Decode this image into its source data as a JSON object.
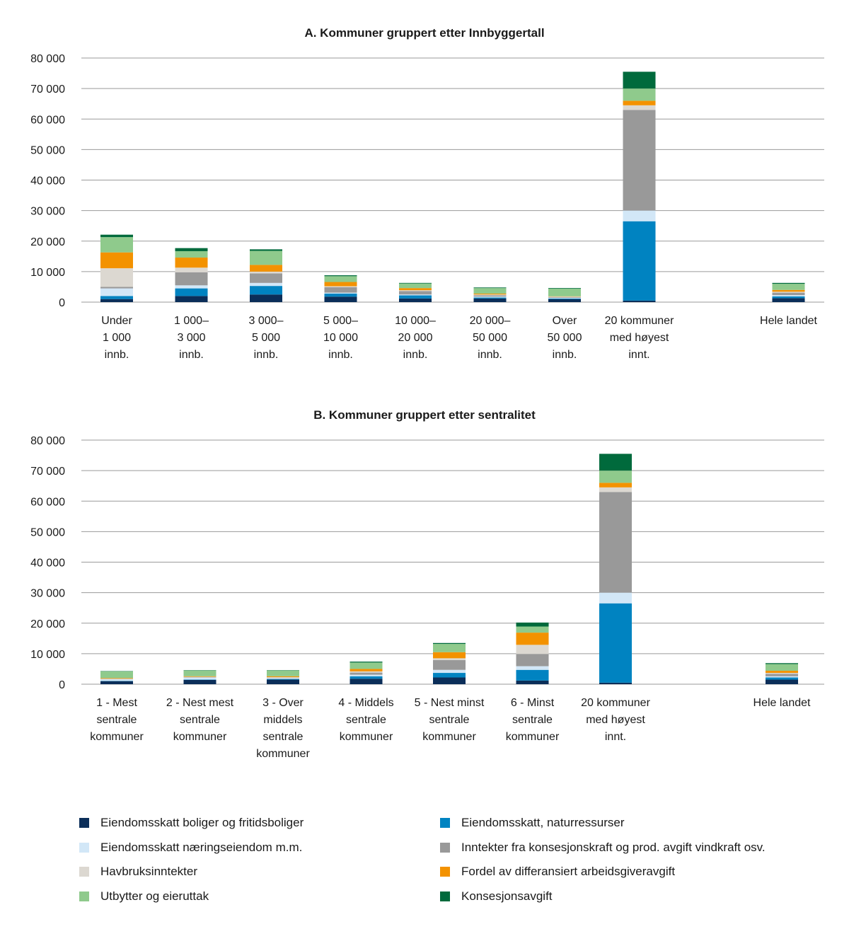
{
  "series": [
    {
      "name": "Eiendomsskatt boliger og fritidsboliger",
      "color": "#0b2e59"
    },
    {
      "name": "Eiendomsskatt, naturressurser",
      "color": "#0083c1"
    },
    {
      "name": "Eiendomsskatt næringseiendom m.m.",
      "color": "#d2e7f7"
    },
    {
      "name": "Inntekter fra konsesjonskraft og prod. avgift vindkraft osv.",
      "color": "#999999"
    },
    {
      "name": "Havbruksinntekter",
      "color": "#dcd8d1"
    },
    {
      "name": "Fordel av differansiert arbeidsgiveravgift",
      "color": "#f39200"
    },
    {
      "name": "Utbytter og eieruttak",
      "color": "#8fca8c"
    },
    {
      "name": "Konsesjonsavgift",
      "color": "#006a3c"
    }
  ],
  "legend_layout": [
    {
      "series": 0,
      "col": 0,
      "row": 0
    },
    {
      "series": 1,
      "col": 1,
      "row": 0
    },
    {
      "series": 2,
      "col": 0,
      "row": 1
    },
    {
      "series": 3,
      "col": 1,
      "row": 1
    },
    {
      "series": 4,
      "col": 0,
      "row": 2
    },
    {
      "series": 5,
      "col": 1,
      "row": 2
    },
    {
      "series": 6,
      "col": 0,
      "row": 3
    },
    {
      "series": 7,
      "col": 1,
      "row": 3
    }
  ],
  "chart_data": [
    {
      "type": "bar",
      "stacked": true,
      "title": "A. Kommuner gruppert etter Innbyggertall",
      "xlabel": "",
      "ylabel": "",
      "ylim": [
        0,
        80000
      ],
      "yticks": [
        0,
        10000,
        20000,
        30000,
        40000,
        50000,
        60000,
        70000,
        80000
      ],
      "ytick_labels": [
        "0",
        "10 000",
        "20 000",
        "30 000",
        "40 000",
        "50 000",
        "60 000",
        "70 000",
        "80 000"
      ],
      "grid": true,
      "categories": [
        [
          "Under",
          "1 000",
          "innb."
        ],
        [
          "1 000–",
          "3 000",
          "innb."
        ],
        [
          "3 000–",
          "5 000",
          "innb."
        ],
        [
          "5 000–",
          "10 000",
          "innb."
        ],
        [
          "10 000–",
          "20 000",
          "innb."
        ],
        [
          "20 000–",
          "50 000",
          "innb."
        ],
        [
          "Over",
          "50 000",
          "innb."
        ],
        [
          "20 kommuner",
          "med høyest",
          "innt."
        ],
        [
          "Hele landet"
        ]
      ],
      "slots": [
        0,
        1,
        2,
        3,
        4,
        5,
        6,
        7,
        9
      ],
      "series_values": [
        [
          1000,
          2000,
          2500,
          1800,
          1200,
          1200,
          1000,
          500,
          1300
        ],
        [
          1000,
          2500,
          2800,
          1000,
          1000,
          300,
          200,
          26000,
          600
        ],
        [
          2500,
          1000,
          1000,
          300,
          300,
          300,
          200,
          3500,
          400
        ],
        [
          500,
          4300,
          3100,
          1800,
          1100,
          400,
          200,
          33000,
          800
        ],
        [
          6100,
          1500,
          600,
          300,
          300,
          300,
          200,
          1500,
          300
        ],
        [
          5200,
          3300,
          2200,
          1400,
          700,
          300,
          100,
          1500,
          600
        ],
        [
          5000,
          2100,
          4600,
          1900,
          1500,
          1800,
          2500,
          4000,
          2000
        ],
        [
          800,
          1000,
          500,
          300,
          200,
          200,
          200,
          5500,
          300
        ]
      ]
    },
    {
      "type": "bar",
      "stacked": true,
      "title": "B. Kommuner gruppert etter sentralitet",
      "xlabel": "",
      "ylabel": "",
      "ylim": [
        0,
        80000
      ],
      "yticks": [
        0,
        10000,
        20000,
        30000,
        40000,
        50000,
        60000,
        70000,
        80000
      ],
      "ytick_labels": [
        "0",
        "10 000",
        "20 000",
        "30 000",
        "40 000",
        "50 000",
        "60 000",
        "70 000",
        "80 000"
      ],
      "grid": true,
      "categories": [
        [
          "1 - Mest",
          "sentrale",
          "kommuner"
        ],
        [
          "2 - Nest mest",
          "sentrale",
          "kommuner"
        ],
        [
          "3 - Over",
          "middels",
          "sentrale",
          "kommuner"
        ],
        [
          "4 - Middels",
          "sentrale",
          "kommuner"
        ],
        [
          "5 - Nest minst",
          "sentrale",
          "kommuner"
        ],
        [
          "6 -  Minst",
          "sentrale",
          "kommuner"
        ],
        [
          "20 kommuner",
          "med høyest",
          "innt."
        ],
        [
          "Hele landet"
        ]
      ],
      "slots": [
        0,
        1,
        2,
        3,
        4,
        5,
        6,
        8
      ],
      "series_values": [
        [
          1000,
          1400,
          1500,
          1800,
          2200,
          1200,
          500,
          1500
        ],
        [
          100,
          100,
          200,
          800,
          1500,
          3500,
          26000,
          700
        ],
        [
          500,
          700,
          300,
          500,
          1000,
          1200,
          3500,
          400
        ],
        [
          100,
          100,
          100,
          700,
          3200,
          4000,
          33000,
          800
        ],
        [
          100,
          100,
          200,
          400,
          600,
          3000,
          1500,
          300
        ],
        [
          200,
          200,
          300,
          800,
          2000,
          4000,
          1500,
          700
        ],
        [
          2200,
          1900,
          1900,
          2100,
          2700,
          2000,
          4000,
          2200
        ],
        [
          100,
          100,
          100,
          300,
          300,
          1300,
          5500,
          300
        ]
      ]
    }
  ]
}
